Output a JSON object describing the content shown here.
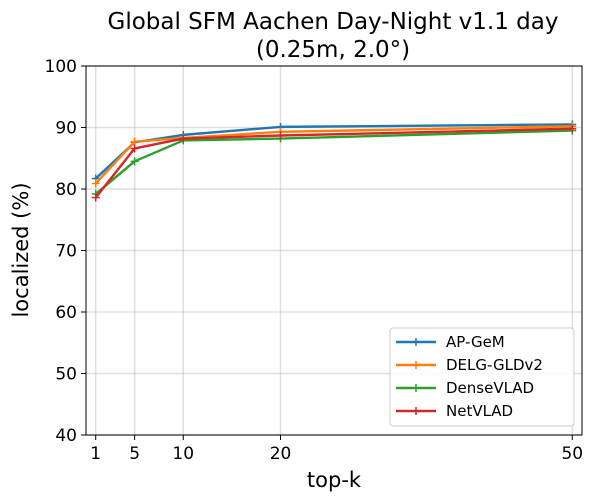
{
  "chart_data": {
    "type": "line",
    "title": "Global SFM Aachen Day-Night v1.1 day",
    "subtitle": "(0.25m, 2.0°)",
    "xlabel": "top-k",
    "ylabel": "localized (%)",
    "x": [
      1,
      5,
      10,
      20,
      50
    ],
    "xticks": [
      1,
      5,
      10,
      20,
      50
    ],
    "yticks": [
      40,
      50,
      60,
      70,
      80,
      90,
      100
    ],
    "xlim": [
      0,
      51
    ],
    "ylim": [
      40,
      100
    ],
    "grid": true,
    "legend_position": "lower-right",
    "series": [
      {
        "name": "AP-GeM",
        "color": "#1f77b4",
        "values": [
          81.7,
          87.6,
          88.8,
          90.1,
          90.5
        ]
      },
      {
        "name": "DELG-GLDv2",
        "color": "#ff7f0e",
        "values": [
          80.9,
          87.7,
          88.3,
          89.3,
          90.2
        ]
      },
      {
        "name": "DenseVLAD",
        "color": "#2ca02c",
        "values": [
          79.2,
          84.5,
          87.9,
          88.2,
          89.5
        ]
      },
      {
        "name": "NetVLAD",
        "color": "#d62728",
        "values": [
          78.6,
          86.6,
          88.2,
          88.7,
          89.8
        ]
      }
    ]
  }
}
